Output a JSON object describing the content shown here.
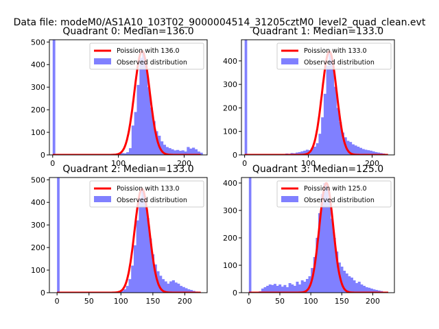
{
  "figure": {
    "suptitle": "Data file: modeM0/AS1A10_103T02_9000004514_31205cztM0_level2_quad_clean.evt"
  },
  "chart_data": [
    {
      "type": "bar",
      "title": "Quadrant 0: Median=136.0",
      "median": 136.0,
      "xlim": [
        -5,
        235
      ],
      "ylim": [
        0,
        510
      ],
      "xticks": [
        0,
        100,
        200
      ],
      "yticks": [
        0,
        100,
        200,
        300,
        400,
        500
      ],
      "legend": {
        "placement": "upper right",
        "entries": [
          "Poission with 136.0",
          "Observed distribution"
        ]
      },
      "fit_peak": 460,
      "fit_sigma": 11.7,
      "spike": {
        "x": 0,
        "width": 4,
        "value": 510
      },
      "bins": [
        {
          "x": 80,
          "v": 2
        },
        {
          "x": 84,
          "v": 3
        },
        {
          "x": 88,
          "v": 4
        },
        {
          "x": 92,
          "v": 3
        },
        {
          "x": 96,
          "v": 6
        },
        {
          "x": 100,
          "v": 5
        },
        {
          "x": 104,
          "v": 8
        },
        {
          "x": 108,
          "v": 7
        },
        {
          "x": 112,
          "v": 12
        },
        {
          "x": 116,
          "v": 30
        },
        {
          "x": 120,
          "v": 130
        },
        {
          "x": 124,
          "v": 190
        },
        {
          "x": 128,
          "v": 310
        },
        {
          "x": 132,
          "v": 430
        },
        {
          "x": 136,
          "v": 455
        },
        {
          "x": 140,
          "v": 400
        },
        {
          "x": 144,
          "v": 300
        },
        {
          "x": 148,
          "v": 210
        },
        {
          "x": 152,
          "v": 150
        },
        {
          "x": 156,
          "v": 105
        },
        {
          "x": 160,
          "v": 85
        },
        {
          "x": 164,
          "v": 60
        },
        {
          "x": 168,
          "v": 45
        },
        {
          "x": 172,
          "v": 35
        },
        {
          "x": 176,
          "v": 30
        },
        {
          "x": 180,
          "v": 25
        },
        {
          "x": 184,
          "v": 20
        },
        {
          "x": 188,
          "v": 22
        },
        {
          "x": 192,
          "v": 18
        },
        {
          "x": 196,
          "v": 20
        },
        {
          "x": 200,
          "v": 15
        },
        {
          "x": 204,
          "v": 35
        },
        {
          "x": 208,
          "v": 28
        },
        {
          "x": 212,
          "v": 32
        },
        {
          "x": 216,
          "v": 25
        },
        {
          "x": 220,
          "v": 15
        },
        {
          "x": 224,
          "v": 10
        }
      ]
    },
    {
      "type": "bar",
      "title": "Quadrant 1: Median=133.0",
      "median": 133.0,
      "xlim": [
        -5,
        235
      ],
      "ylim": [
        0,
        490
      ],
      "xticks": [
        0,
        100,
        200
      ],
      "yticks": [
        0,
        100,
        200,
        300,
        400
      ],
      "legend": {
        "placement": "upper right",
        "entries": [
          "Poission with 133.0",
          "Observed distribution"
        ]
      },
      "fit_peak": 440,
      "fit_sigma": 11.5,
      "spike": {
        "x": 0,
        "width": 4,
        "value": 490
      },
      "bins": [
        {
          "x": 56,
          "v": 3
        },
        {
          "x": 60,
          "v": 4
        },
        {
          "x": 64,
          "v": 6
        },
        {
          "x": 68,
          "v": 5
        },
        {
          "x": 72,
          "v": 8
        },
        {
          "x": 76,
          "v": 7
        },
        {
          "x": 80,
          "v": 10
        },
        {
          "x": 84,
          "v": 12
        },
        {
          "x": 88,
          "v": 15
        },
        {
          "x": 92,
          "v": 18
        },
        {
          "x": 96,
          "v": 22
        },
        {
          "x": 100,
          "v": 20
        },
        {
          "x": 104,
          "v": 30
        },
        {
          "x": 108,
          "v": 35
        },
        {
          "x": 112,
          "v": 50
        },
        {
          "x": 116,
          "v": 90
        },
        {
          "x": 120,
          "v": 160
        },
        {
          "x": 124,
          "v": 260
        },
        {
          "x": 128,
          "v": 380
        },
        {
          "x": 132,
          "v": 440
        },
        {
          "x": 136,
          "v": 390
        },
        {
          "x": 140,
          "v": 290
        },
        {
          "x": 144,
          "v": 200
        },
        {
          "x": 148,
          "v": 140
        },
        {
          "x": 152,
          "v": 95
        },
        {
          "x": 156,
          "v": 75
        },
        {
          "x": 160,
          "v": 60
        },
        {
          "x": 164,
          "v": 55
        },
        {
          "x": 168,
          "v": 45
        },
        {
          "x": 172,
          "v": 40
        },
        {
          "x": 176,
          "v": 35
        },
        {
          "x": 180,
          "v": 30
        },
        {
          "x": 184,
          "v": 25
        },
        {
          "x": 188,
          "v": 22
        },
        {
          "x": 192,
          "v": 20
        },
        {
          "x": 196,
          "v": 18
        },
        {
          "x": 200,
          "v": 15
        },
        {
          "x": 204,
          "v": 12
        },
        {
          "x": 208,
          "v": 10
        },
        {
          "x": 212,
          "v": 8
        },
        {
          "x": 216,
          "v": 6
        }
      ]
    },
    {
      "type": "bar",
      "title": "Quadrant 2: Median=133.0",
      "median": 133.0,
      "xlim": [
        -12,
        235
      ],
      "ylim": [
        0,
        510
      ],
      "xticks": [
        0,
        50,
        100,
        150,
        200
      ],
      "yticks": [
        0,
        100,
        200,
        300,
        400,
        500
      ],
      "legend": {
        "placement": "upper right",
        "entries": [
          "Poission with 133.0",
          "Observed distribution"
        ]
      },
      "fit_peak": 460,
      "fit_sigma": 11.5,
      "spike": {
        "x": 0,
        "width": 4,
        "value": 510
      },
      "bins": [
        {
          "x": 92,
          "v": 3
        },
        {
          "x": 96,
          "v": 4
        },
        {
          "x": 100,
          "v": 8
        },
        {
          "x": 104,
          "v": 15
        },
        {
          "x": 108,
          "v": 30
        },
        {
          "x": 112,
          "v": 60
        },
        {
          "x": 116,
          "v": 120
        },
        {
          "x": 120,
          "v": 210
        },
        {
          "x": 124,
          "v": 320
        },
        {
          "x": 128,
          "v": 420
        },
        {
          "x": 132,
          "v": 455
        },
        {
          "x": 136,
          "v": 420
        },
        {
          "x": 140,
          "v": 330
        },
        {
          "x": 144,
          "v": 240
        },
        {
          "x": 148,
          "v": 170
        },
        {
          "x": 152,
          "v": 125
        },
        {
          "x": 156,
          "v": 95
        },
        {
          "x": 160,
          "v": 75
        },
        {
          "x": 164,
          "v": 60
        },
        {
          "x": 168,
          "v": 50
        },
        {
          "x": 172,
          "v": 40
        },
        {
          "x": 176,
          "v": 50
        },
        {
          "x": 180,
          "v": 55
        },
        {
          "x": 184,
          "v": 45
        },
        {
          "x": 188,
          "v": 40
        },
        {
          "x": 192,
          "v": 30
        },
        {
          "x": 196,
          "v": 25
        },
        {
          "x": 200,
          "v": 20
        },
        {
          "x": 204,
          "v": 15
        },
        {
          "x": 208,
          "v": 12
        },
        {
          "x": 212,
          "v": 8
        },
        {
          "x": 216,
          "v": 5
        }
      ]
    },
    {
      "type": "bar",
      "title": "Quadrant 3: Median=125.0",
      "median": 125.0,
      "xlim": [
        -12,
        235
      ],
      "ylim": [
        0,
        420
      ],
      "xticks": [
        0,
        50,
        100,
        150,
        200
      ],
      "yticks": [
        0,
        100,
        200,
        300,
        400
      ],
      "legend": {
        "placement": "upper right",
        "entries": [
          "Poission with 125.0",
          "Observed distribution"
        ]
      },
      "fit_peak": 400,
      "fit_sigma": 11.2,
      "spike": {
        "x": 0,
        "width": 4,
        "value": 420
      },
      "bins": [
        {
          "x": 16,
          "v": 5
        },
        {
          "x": 20,
          "v": 15
        },
        {
          "x": 24,
          "v": 20
        },
        {
          "x": 28,
          "v": 25
        },
        {
          "x": 32,
          "v": 30
        },
        {
          "x": 36,
          "v": 28
        },
        {
          "x": 40,
          "v": 32
        },
        {
          "x": 44,
          "v": 25
        },
        {
          "x": 48,
          "v": 30
        },
        {
          "x": 52,
          "v": 22
        },
        {
          "x": 56,
          "v": 28
        },
        {
          "x": 60,
          "v": 20
        },
        {
          "x": 64,
          "v": 35
        },
        {
          "x": 68,
          "v": 30
        },
        {
          "x": 72,
          "v": 25
        },
        {
          "x": 76,
          "v": 40
        },
        {
          "x": 80,
          "v": 30
        },
        {
          "x": 84,
          "v": 45
        },
        {
          "x": 88,
          "v": 40
        },
        {
          "x": 92,
          "v": 50
        },
        {
          "x": 96,
          "v": 60
        },
        {
          "x": 100,
          "v": 90
        },
        {
          "x": 104,
          "v": 130
        },
        {
          "x": 108,
          "v": 200
        },
        {
          "x": 112,
          "v": 290
        },
        {
          "x": 116,
          "v": 360
        },
        {
          "x": 120,
          "v": 400
        },
        {
          "x": 124,
          "v": 395
        },
        {
          "x": 128,
          "v": 340
        },
        {
          "x": 132,
          "v": 270
        },
        {
          "x": 136,
          "v": 200
        },
        {
          "x": 140,
          "v": 150
        },
        {
          "x": 144,
          "v": 110
        },
        {
          "x": 148,
          "v": 95
        },
        {
          "x": 152,
          "v": 80
        },
        {
          "x": 156,
          "v": 70
        },
        {
          "x": 160,
          "v": 60
        },
        {
          "x": 164,
          "v": 55
        },
        {
          "x": 168,
          "v": 45
        },
        {
          "x": 172,
          "v": 35
        },
        {
          "x": 176,
          "v": 40
        },
        {
          "x": 180,
          "v": 30
        },
        {
          "x": 184,
          "v": 25
        },
        {
          "x": 188,
          "v": 20
        },
        {
          "x": 192,
          "v": 18
        },
        {
          "x": 196,
          "v": 15
        },
        {
          "x": 200,
          "v": 12
        },
        {
          "x": 204,
          "v": 10
        },
        {
          "x": 208,
          "v": 8
        },
        {
          "x": 212,
          "v": 6
        }
      ]
    }
  ],
  "colors": {
    "fit_line": "#ff0000",
    "histogram": "#8080ff",
    "axis": "#000000",
    "legend_border": "#cccccc",
    "background": "#ffffff"
  }
}
